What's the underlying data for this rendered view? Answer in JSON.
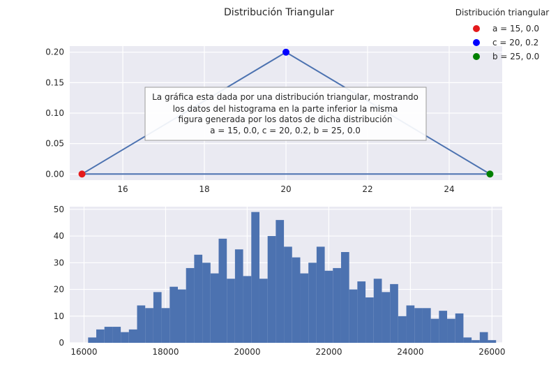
{
  "figure_title": "Distribución Triangular",
  "legend": {
    "title": "Distribución triangular",
    "entries": [
      {
        "label": "a = 15, 0.0",
        "color": "#e41a1c"
      },
      {
        "label": "c = 20, 0.2",
        "color": "#0000ff"
      },
      {
        "label": "b = 25, 0.0",
        "color": "#008000"
      }
    ]
  },
  "annotation_lines": [
    "La gráfica esta dada por una distribución triangular, mostrando",
    "los datos del histograma en la parte inferior la misma",
    "figura generada por los datos de dicha distribución",
    "a = 15, 0.0,  c = 20, 0.2,  b = 25, 0.0"
  ],
  "chart_data": [
    {
      "type": "line",
      "title": "",
      "xlabel": "",
      "ylabel": "",
      "grid": true,
      "xlim": [
        14.7,
        25.3
      ],
      "ylim": [
        -0.01,
        0.21
      ],
      "x_ticks": [
        16,
        18,
        20,
        22,
        24
      ],
      "y_ticks": [
        0.0,
        0.05,
        0.1,
        0.15,
        0.2
      ],
      "y_tick_labels": [
        "0.00",
        "0.05",
        "0.10",
        "0.15",
        "0.20"
      ],
      "line_color": "#4c72b0",
      "series": [
        {
          "x": [
            15,
            20,
            25,
            15
          ],
          "y": [
            0.0,
            0.2,
            0.0,
            0.0
          ]
        }
      ],
      "points": [
        {
          "x": 15,
          "y": 0.0,
          "color": "#e41a1c"
        },
        {
          "x": 20,
          "y": 0.2,
          "color": "#0000ff"
        },
        {
          "x": 25,
          "y": 0.0,
          "color": "#008000"
        }
      ]
    },
    {
      "type": "bar",
      "title": "",
      "xlabel": "",
      "ylabel": "",
      "grid": true,
      "xlim": [
        15650,
        26250
      ],
      "ylim": [
        0,
        51
      ],
      "x_ticks": [
        16000,
        18000,
        20000,
        22000,
        24000,
        26000
      ],
      "y_ticks": [
        0,
        10,
        20,
        30,
        40,
        50
      ],
      "bar_color": "#4c72b0",
      "bin_start": 16100,
      "bin_width": 200,
      "values": [
        2,
        5,
        6,
        6,
        4,
        5,
        14,
        13,
        19,
        13,
        21,
        20,
        28,
        33,
        30,
        26,
        39,
        24,
        35,
        25,
        49,
        24,
        40,
        46,
        36,
        32,
        26,
        30,
        36,
        27,
        28,
        34,
        20,
        23,
        17,
        24,
        19,
        22,
        10,
        14,
        13,
        13,
        9,
        12,
        9,
        11,
        2,
        1,
        4,
        1
      ]
    }
  ]
}
